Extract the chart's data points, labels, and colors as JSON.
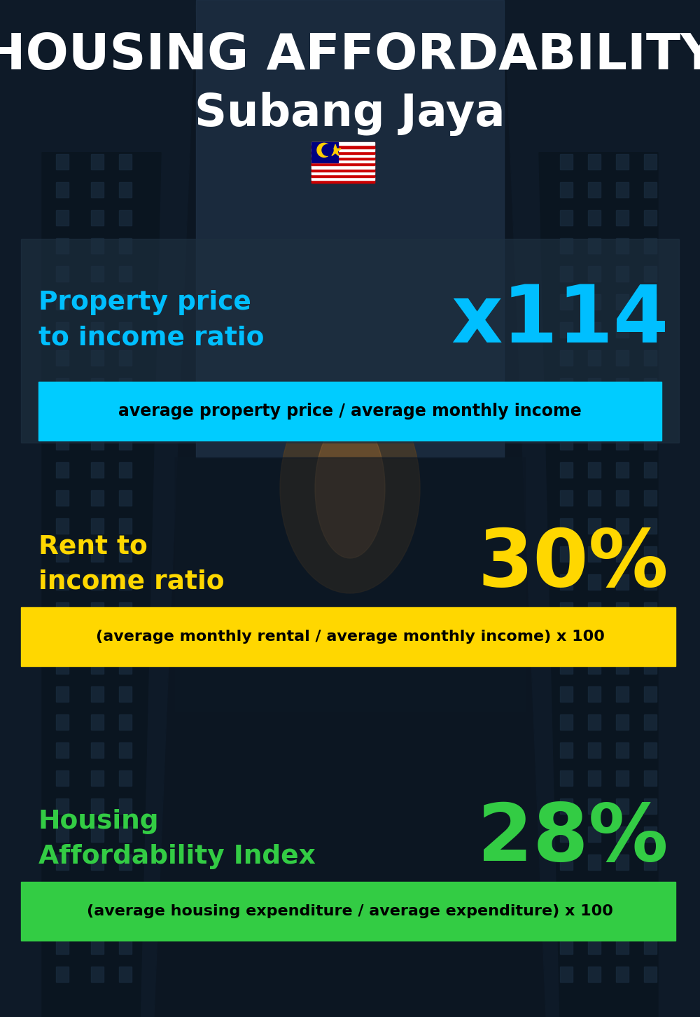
{
  "title_line1": "HOUSING AFFORDABILITY",
  "title_line2": "Subang Jaya",
  "bg_color": "#0d1520",
  "section1_label": "Property price\nto income ratio",
  "section1_value": "x114",
  "section1_label_color": "#00bfff",
  "section1_value_color": "#00bfff",
  "section1_bar_color": "#00ccff",
  "section1_bar_text": "average property price / average monthly income",
  "section1_bar_text_color": "#000000",
  "section2_label": "Rent to\nincome ratio",
  "section2_value": "30%",
  "section2_label_color": "#ffd700",
  "section2_value_color": "#ffd700",
  "section2_bar_color": "#ffd700",
  "section2_bar_text": "(average monthly rental / average monthly income) x 100",
  "section2_bar_text_color": "#000000",
  "section3_label": "Housing\nAffordability Index",
  "section3_value": "28%",
  "section3_label_color": "#33cc44",
  "section3_value_color": "#33cc44",
  "section3_bar_color": "#33cc44",
  "section3_bar_text": "(average housing expenditure / average expenditure) x 100",
  "section3_bar_text_color": "#000000",
  "title_color": "#ffffff",
  "panel1_color": "#2a3d50",
  "panel1_alpha": 0.6,
  "panel23_color": "#1a2535",
  "panel23_alpha": 0.0
}
